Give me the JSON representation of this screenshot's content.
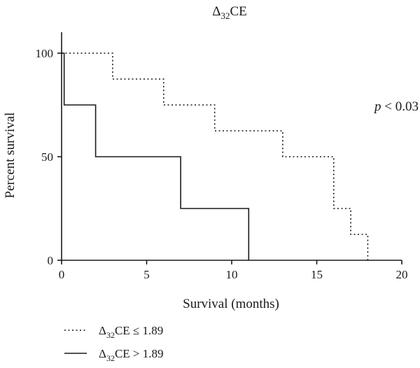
{
  "chart_data": {
    "type": "line",
    "title_symbol": "Δ",
    "title_subscript": "32",
    "title_main": "CE",
    "xlabel": "Survival (months)",
    "ylabel": "Percent survival",
    "xlim": [
      0,
      20
    ],
    "ylim": [
      0,
      100
    ],
    "x_ticks": [
      0,
      5,
      10,
      15,
      20
    ],
    "y_ticks": [
      0,
      50,
      100
    ],
    "x_tick_labels": [
      "0",
      "5",
      "10",
      "15",
      "20"
    ],
    "y_tick_labels": [
      "0",
      "50",
      "100"
    ],
    "grid": false,
    "legend_position": "bottom-left",
    "annotation": {
      "italic": "p",
      "rest": " < 0.03"
    },
    "series": [
      {
        "name_prefix": "Δ",
        "name_sub": "32",
        "name_rest": "CE ≤ 1.89",
        "style": "dotted",
        "color": "#1a1a1a",
        "steps": [
          [
            0,
            100
          ],
          [
            3,
            87.5
          ],
          [
            6,
            75
          ],
          [
            9,
            62.5
          ],
          [
            13,
            50
          ],
          [
            16,
            25
          ],
          [
            17,
            12.5
          ],
          [
            18,
            0
          ]
        ]
      },
      {
        "name_prefix": "Δ",
        "name_sub": "32",
        "name_rest": "CE > 1.89",
        "style": "solid",
        "color": "#1a1a1a",
        "steps": [
          [
            0,
            100
          ],
          [
            0.15,
            75
          ],
          [
            2,
            50
          ],
          [
            7,
            25
          ],
          [
            11,
            0
          ]
        ]
      }
    ]
  }
}
